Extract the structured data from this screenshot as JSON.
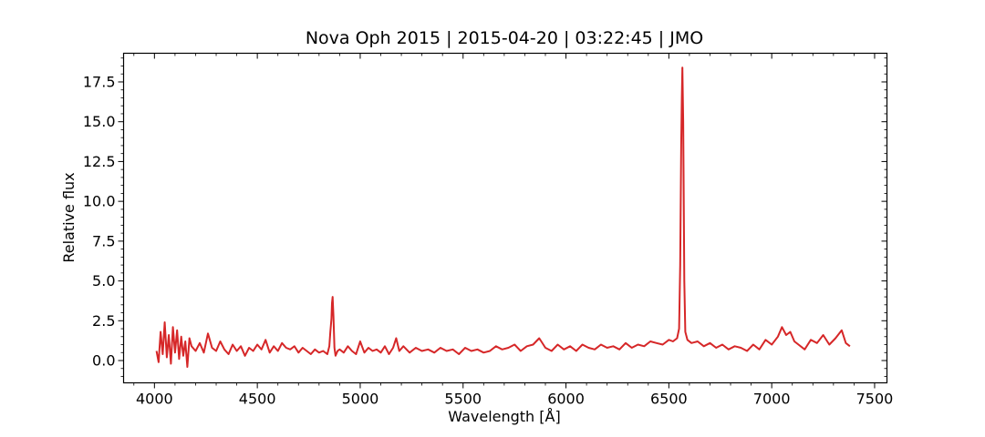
{
  "chart_data": {
    "type": "line",
    "title": "Nova Oph 2015 | 2015-04-20 | 03:22:45 | JMO",
    "xlabel": "Wavelength [Å]",
    "ylabel": "Relative flux",
    "xlim": [
      3850,
      7560
    ],
    "ylim": [
      -1.4,
      19.3
    ],
    "x_ticks": [
      4000,
      4500,
      5000,
      5500,
      6000,
      6500,
      7000,
      7500
    ],
    "x_tick_labels": [
      "4000",
      "4500",
      "5000",
      "5500",
      "6000",
      "6500",
      "7000",
      "7500"
    ],
    "y_ticks": [
      0,
      2.5,
      5,
      7.5,
      10,
      12.5,
      15,
      17.5
    ],
    "y_tick_labels": [
      "0.0",
      "2.5",
      "5.0",
      "7.5",
      "10.0",
      "12.5",
      "15.0",
      "17.5"
    ],
    "grid": false,
    "series": [
      {
        "color": "#d62728",
        "x": [
          4010,
          4020,
          4030,
          4040,
          4050,
          4060,
          4070,
          4080,
          4090,
          4100,
          4110,
          4120,
          4130,
          4140,
          4150,
          4160,
          4170,
          4180,
          4200,
          4220,
          4240,
          4260,
          4280,
          4300,
          4320,
          4340,
          4360,
          4380,
          4400,
          4420,
          4440,
          4460,
          4480,
          4500,
          4520,
          4540,
          4560,
          4580,
          4600,
          4620,
          4640,
          4660,
          4680,
          4700,
          4720,
          4740,
          4760,
          4780,
          4800,
          4820,
          4840,
          4850,
          4855,
          4860,
          4863,
          4866,
          4870,
          4875,
          4880,
          4890,
          4900,
          4920,
          4940,
          4960,
          4980,
          5000,
          5020,
          5040,
          5060,
          5080,
          5100,
          5120,
          5140,
          5160,
          5175,
          5190,
          5210,
          5240,
          5270,
          5300,
          5330,
          5360,
          5390,
          5420,
          5450,
          5480,
          5510,
          5540,
          5570,
          5600,
          5630,
          5660,
          5690,
          5720,
          5750,
          5780,
          5810,
          5840,
          5870,
          5880,
          5900,
          5930,
          5960,
          5990,
          6020,
          6050,
          6080,
          6110,
          6140,
          6170,
          6200,
          6230,
          6260,
          6290,
          6320,
          6350,
          6380,
          6410,
          6440,
          6470,
          6500,
          6520,
          6540,
          6550,
          6555,
          6560,
          6563,
          6566,
          6570,
          6575,
          6580,
          6590,
          6610,
          6640,
          6670,
          6700,
          6730,
          6760,
          6790,
          6820,
          6850,
          6880,
          6910,
          6940,
          6970,
          7000,
          7030,
          7050,
          7070,
          7090,
          7110,
          7130,
          7160,
          7190,
          7220,
          7250,
          7280,
          7310,
          7340,
          7360,
          7380
        ],
        "y": [
          0.6,
          -0.1,
          1.8,
          0.4,
          2.4,
          0.2,
          1.6,
          -0.2,
          2.1,
          0.5,
          1.9,
          0.1,
          1.5,
          0.3,
          1.2,
          -0.4,
          1.4,
          0.9,
          0.6,
          1.1,
          0.5,
          1.7,
          0.8,
          0.6,
          1.2,
          0.7,
          0.4,
          1.0,
          0.6,
          0.9,
          0.3,
          0.8,
          0.6,
          1.0,
          0.7,
          1.3,
          0.5,
          0.9,
          0.6,
          1.1,
          0.8,
          0.7,
          0.9,
          0.5,
          0.8,
          0.6,
          0.4,
          0.7,
          0.5,
          0.6,
          0.4,
          0.9,
          1.8,
          2.6,
          3.6,
          4.0,
          2.8,
          0.8,
          0.3,
          0.6,
          0.7,
          0.5,
          0.9,
          0.6,
          0.4,
          1.2,
          0.5,
          0.8,
          0.6,
          0.7,
          0.5,
          0.9,
          0.4,
          0.8,
          1.4,
          0.6,
          0.9,
          0.5,
          0.8,
          0.6,
          0.7,
          0.5,
          0.8,
          0.6,
          0.7,
          0.4,
          0.8,
          0.6,
          0.7,
          0.5,
          0.6,
          0.9,
          0.7,
          0.8,
          1.0,
          0.6,
          0.9,
          1.0,
          1.4,
          1.2,
          0.8,
          0.6,
          1.0,
          0.7,
          0.9,
          0.6,
          1.0,
          0.8,
          0.7,
          1.0,
          0.8,
          0.9,
          0.7,
          1.1,
          0.8,
          1.0,
          0.9,
          1.2,
          1.1,
          1.0,
          1.3,
          1.2,
          1.4,
          2.0,
          6.0,
          13.5,
          16.5,
          18.4,
          15.0,
          5.0,
          1.8,
          1.3,
          1.1,
          1.2,
          0.9,
          1.1,
          0.8,
          1.0,
          0.7,
          0.9,
          0.8,
          0.6,
          1.0,
          0.7,
          1.3,
          1.0,
          1.5,
          2.1,
          1.6,
          1.8,
          1.2,
          1.0,
          0.7,
          1.3,
          1.1,
          1.6,
          1.0,
          1.4,
          1.9,
          1.1,
          0.9
        ]
      }
    ]
  }
}
